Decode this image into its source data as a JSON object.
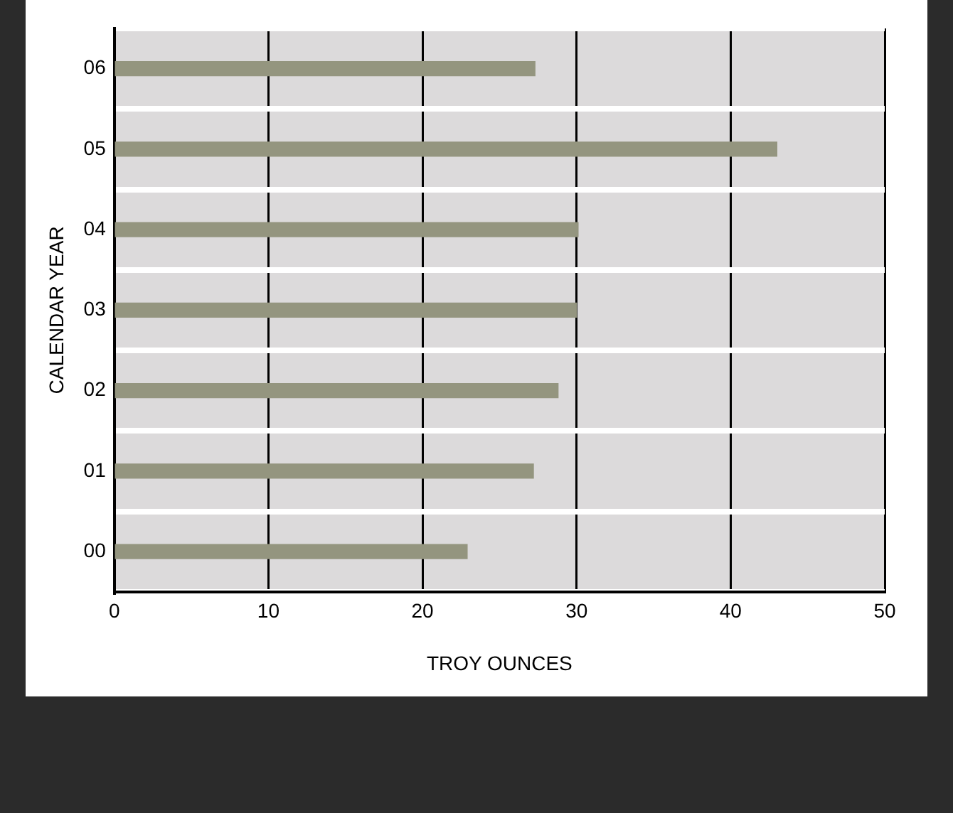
{
  "chart_data": {
    "type": "bar",
    "orientation": "horizontal",
    "xlabel": "TROY OUNCES",
    "ylabel": "CALENDAR YEAR",
    "categories": [
      "06",
      "05",
      "04",
      "03",
      "02",
      "01",
      "00"
    ],
    "values": [
      27.3,
      43.0,
      30.1,
      30.0,
      28.8,
      27.2,
      22.9
    ],
    "color": "#94957f",
    "xlim": [
      0,
      50
    ],
    "xticks": [
      0,
      10,
      20,
      30,
      40,
      50
    ],
    "grid": true,
    "legend": false
  }
}
